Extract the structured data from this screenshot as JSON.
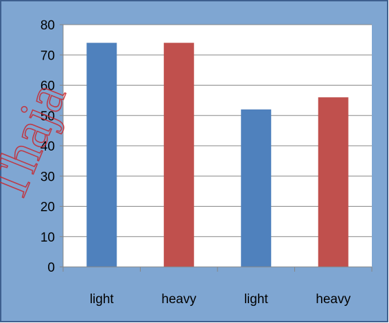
{
  "colors": {
    "frame_fill": "#7fa6d2",
    "frame_border": "#3d5f8e",
    "plot_fill": "#ffffff",
    "gridline": "#868686",
    "axis": "#868686",
    "watermark": "#c8282f"
  },
  "watermark": {
    "text": "Thaja"
  },
  "chart_data": {
    "type": "bar",
    "categories": [
      "light",
      "heavy",
      "light",
      "heavy"
    ],
    "values": [
      74,
      74,
      52,
      56
    ],
    "bar_colors": [
      "#4f81bd",
      "#c0504d",
      "#4f81bd",
      "#c0504d"
    ],
    "title": "",
    "xlabel": "",
    "ylabel": "",
    "ylim": [
      0,
      80
    ],
    "yticks": [
      0,
      10,
      20,
      30,
      40,
      50,
      60,
      70,
      80
    ],
    "grid": true,
    "legend": "none"
  }
}
